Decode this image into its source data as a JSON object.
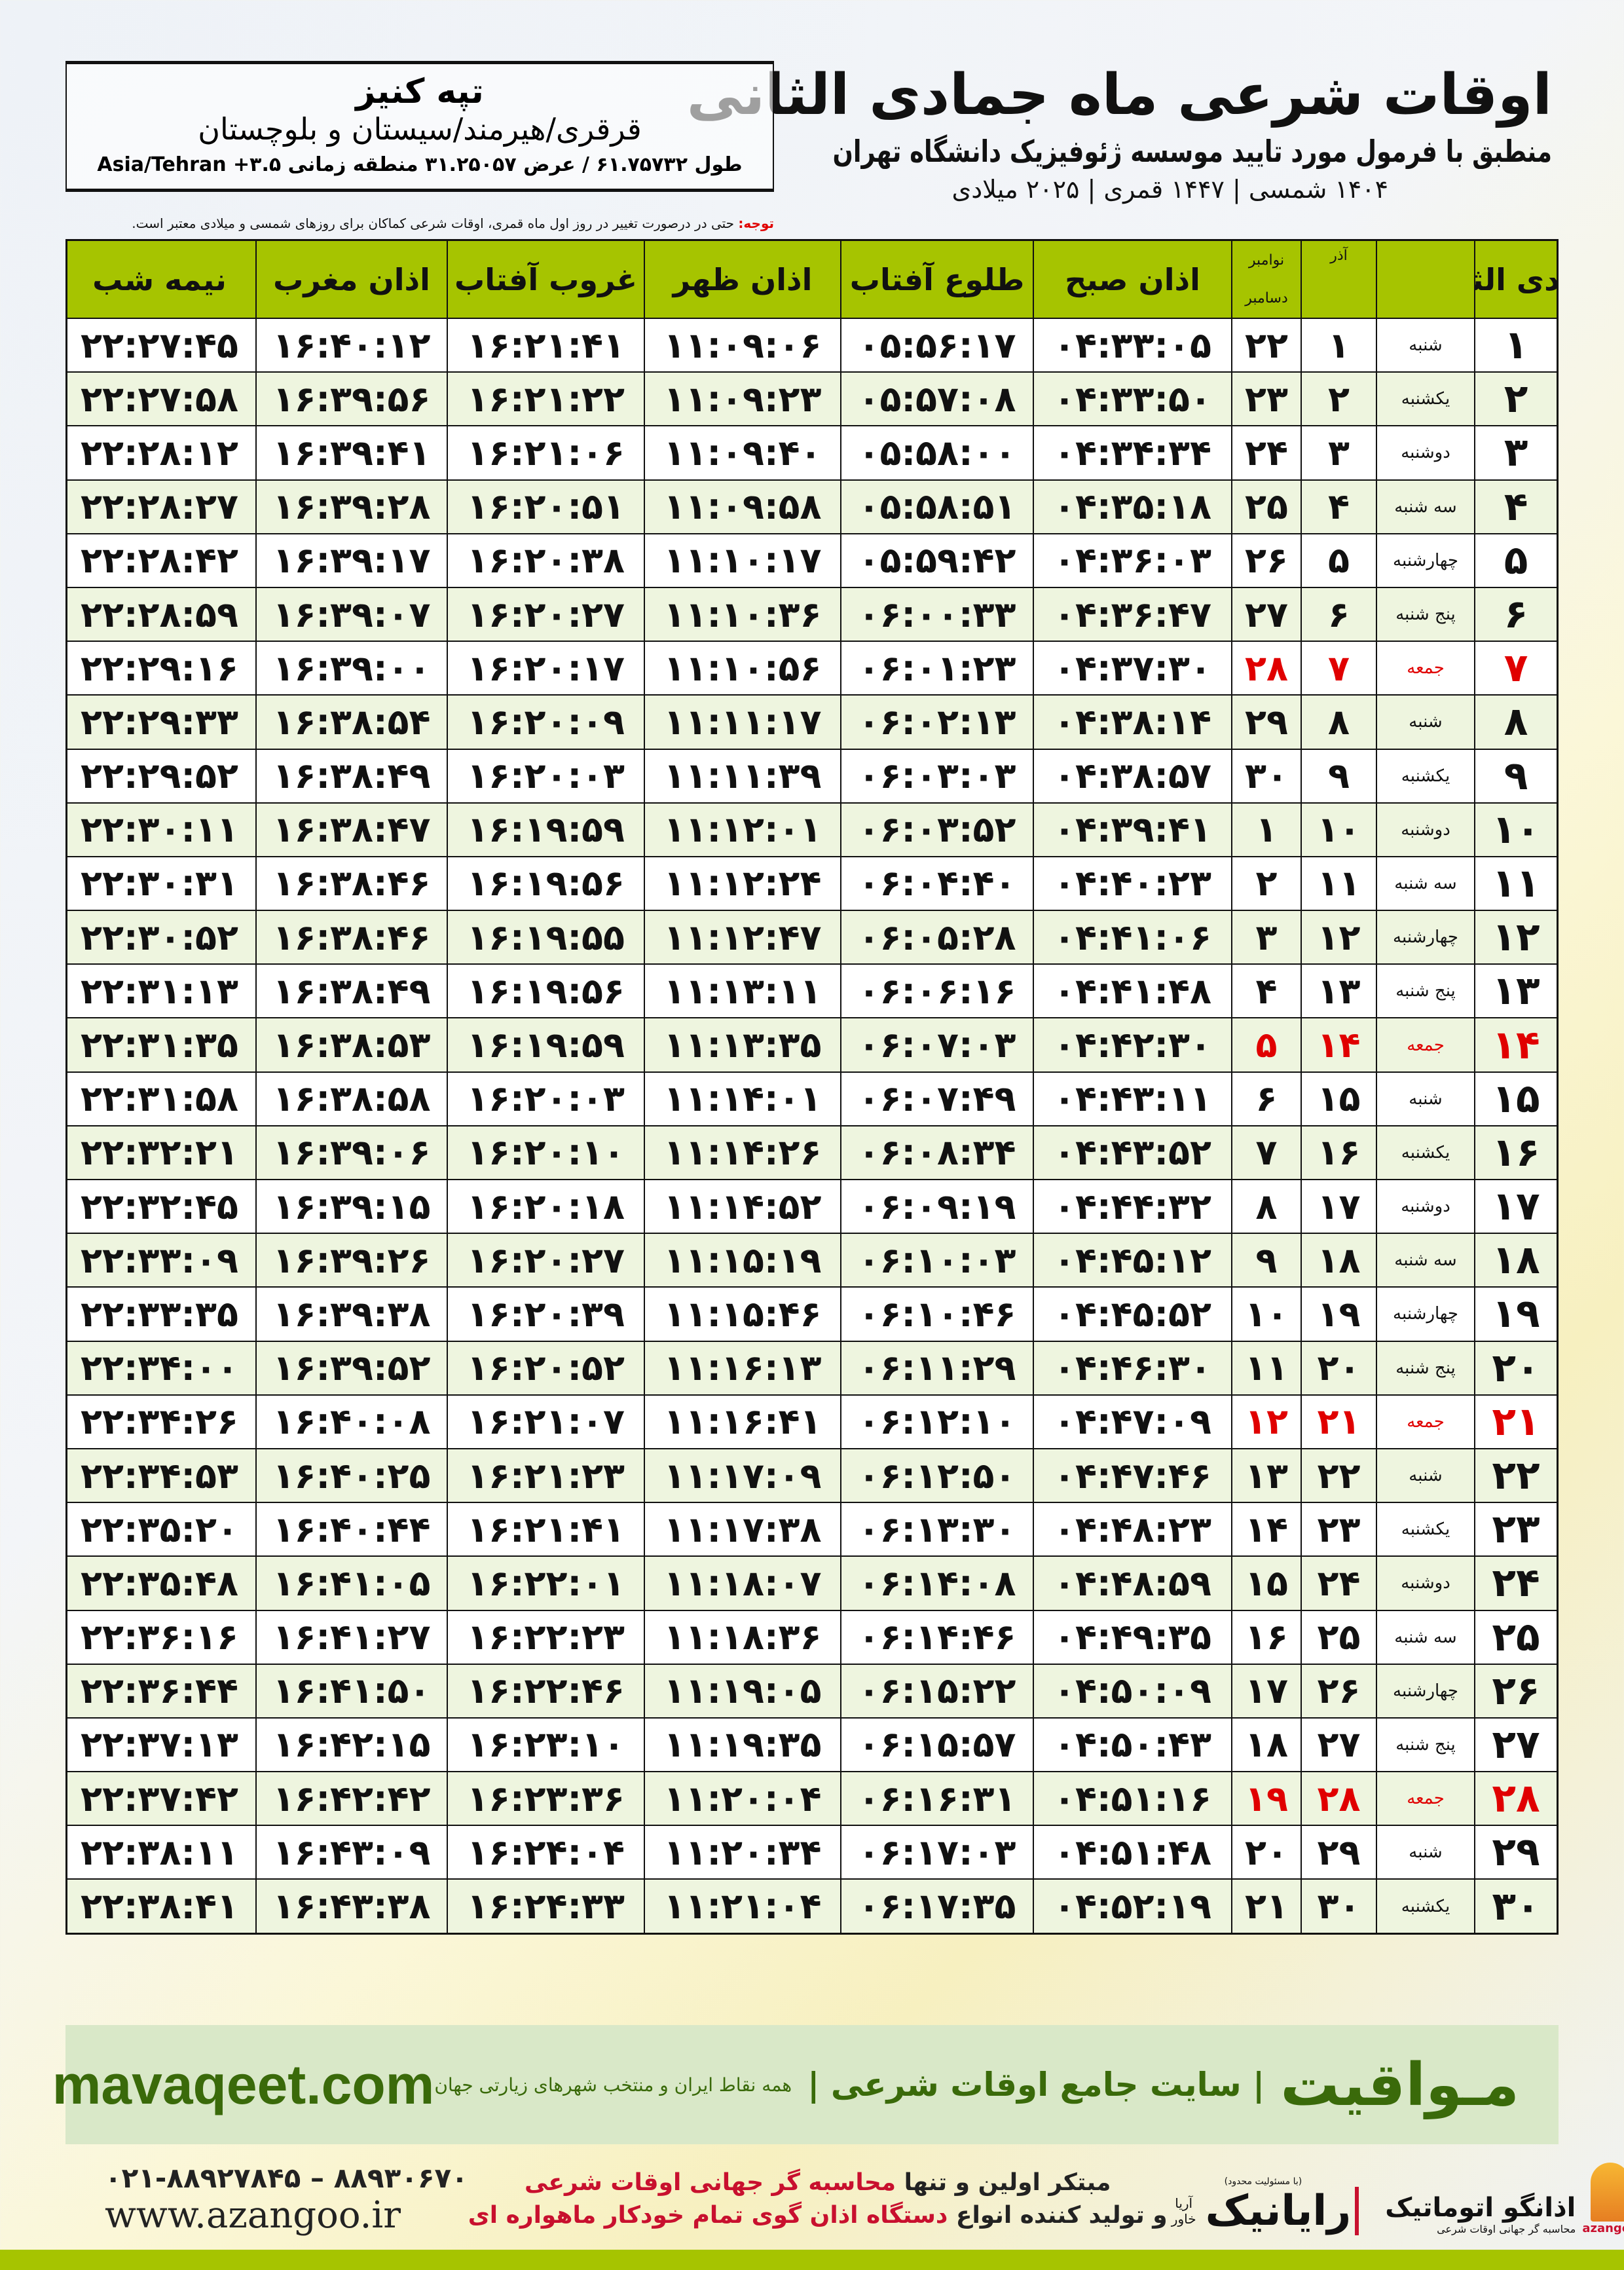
{
  "header": {
    "title": "اوقات شرعی ماه جمادی الثانی",
    "subtitle": "منطبق با فرمول مورد تایید موسسه ژئوفیزیک دانشگاه تهران",
    "dateline": "۱۴۰۴ شمسی | ۱۴۴۷ قمری | ۲۰۲۵ میلادی"
  },
  "location": {
    "city": "تپه کنیز",
    "region": "قرقری/هیرمند/سیستان و بلوچستان",
    "coords": "طول ۶۱.۷۵۷۳۲ / عرض ۳۱.۲۵۰۵۷ منطقه زمانی ۳.۵+ Asia/Tehran"
  },
  "note": {
    "label": "توجه:",
    "text": " حتی در درصورت تغییر در روز اول ماه قمری، اوقات شرعی کماکان برای روزهای شمسی و میلادی معتبر است."
  },
  "table": {
    "headers": {
      "hijri": "جمادی الثانی",
      "azar": "آذر",
      "greg_top": "نوامبر",
      "greg_bottom": "دسامبر",
      "fajr": "اذان صبح",
      "sunrise": "طلوع آفتاب",
      "dhuhr": "اذان ظهر",
      "sunset": "غروب آفتاب",
      "maghrib": "اذان مغرب",
      "midnight": "نیمه شب"
    },
    "holiday_color": "#e00000",
    "header_color": "#a6c400",
    "rows": [
      [
        "۱",
        "شنبه",
        "۱",
        "۲۲",
        "۰۴:۳۳:۰۵",
        "۰۵:۵۶:۱۷",
        "۱۱:۰۹:۰۶",
        "۱۶:۲۱:۴۱",
        "۱۶:۴۰:۱۲",
        "۲۲:۲۷:۴۵",
        false
      ],
      [
        "۲",
        "یکشنبه",
        "۲",
        "۲۳",
        "۰۴:۳۳:۵۰",
        "۰۵:۵۷:۰۸",
        "۱۱:۰۹:۲۳",
        "۱۶:۲۱:۲۲",
        "۱۶:۳۹:۵۶",
        "۲۲:۲۷:۵۸",
        false
      ],
      [
        "۳",
        "دوشنبه",
        "۳",
        "۲۴",
        "۰۴:۳۴:۳۴",
        "۰۵:۵۸:۰۰",
        "۱۱:۰۹:۴۰",
        "۱۶:۲۱:۰۶",
        "۱۶:۳۹:۴۱",
        "۲۲:۲۸:۱۲",
        false
      ],
      [
        "۴",
        "سه شنبه",
        "۴",
        "۲۵",
        "۰۴:۳۵:۱۸",
        "۰۵:۵۸:۵۱",
        "۱۱:۰۹:۵۸",
        "۱۶:۲۰:۵۱",
        "۱۶:۳۹:۲۸",
        "۲۲:۲۸:۲۷",
        false
      ],
      [
        "۵",
        "چهارشنبه",
        "۵",
        "۲۶",
        "۰۴:۳۶:۰۳",
        "۰۵:۵۹:۴۲",
        "۱۱:۱۰:۱۷",
        "۱۶:۲۰:۳۸",
        "۱۶:۳۹:۱۷",
        "۲۲:۲۸:۴۲",
        false
      ],
      [
        "۶",
        "پنج شنبه",
        "۶",
        "۲۷",
        "۰۴:۳۶:۴۷",
        "۰۶:۰۰:۳۳",
        "۱۱:۱۰:۳۶",
        "۱۶:۲۰:۲۷",
        "۱۶:۳۹:۰۷",
        "۲۲:۲۸:۵۹",
        false
      ],
      [
        "۷",
        "جمعه",
        "۷",
        "۲۸",
        "۰۴:۳۷:۳۰",
        "۰۶:۰۱:۲۳",
        "۱۱:۱۰:۵۶",
        "۱۶:۲۰:۱۷",
        "۱۶:۳۹:۰۰",
        "۲۲:۲۹:۱۶",
        true
      ],
      [
        "۸",
        "شنبه",
        "۸",
        "۲۹",
        "۰۴:۳۸:۱۴",
        "۰۶:۰۲:۱۳",
        "۱۱:۱۱:۱۷",
        "۱۶:۲۰:۰۹",
        "۱۶:۳۸:۵۴",
        "۲۲:۲۹:۳۳",
        false
      ],
      [
        "۹",
        "یکشنبه",
        "۹",
        "۳۰",
        "۰۴:۳۸:۵۷",
        "۰۶:۰۳:۰۳",
        "۱۱:۱۱:۳۹",
        "۱۶:۲۰:۰۳",
        "۱۶:۳۸:۴۹",
        "۲۲:۲۹:۵۲",
        false
      ],
      [
        "۱۰",
        "دوشنبه",
        "۱۰",
        "۱",
        "۰۴:۳۹:۴۱",
        "۰۶:۰۳:۵۲",
        "۱۱:۱۲:۰۱",
        "۱۶:۱۹:۵۹",
        "۱۶:۳۸:۴۷",
        "۲۲:۳۰:۱۱",
        false
      ],
      [
        "۱۱",
        "سه شنبه",
        "۱۱",
        "۲",
        "۰۴:۴۰:۲۳",
        "۰۶:۰۴:۴۰",
        "۱۱:۱۲:۲۴",
        "۱۶:۱۹:۵۶",
        "۱۶:۳۸:۴۶",
        "۲۲:۳۰:۳۱",
        false
      ],
      [
        "۱۲",
        "چهارشنبه",
        "۱۲",
        "۳",
        "۰۴:۴۱:۰۶",
        "۰۶:۰۵:۲۸",
        "۱۱:۱۲:۴۷",
        "۱۶:۱۹:۵۵",
        "۱۶:۳۸:۴۶",
        "۲۲:۳۰:۵۲",
        false
      ],
      [
        "۱۳",
        "پنج شنبه",
        "۱۳",
        "۴",
        "۰۴:۴۱:۴۸",
        "۰۶:۰۶:۱۶",
        "۱۱:۱۳:۱۱",
        "۱۶:۱۹:۵۶",
        "۱۶:۳۸:۴۹",
        "۲۲:۳۱:۱۳",
        false
      ],
      [
        "۱۴",
        "جمعه",
        "۱۴",
        "۵",
        "۰۴:۴۲:۳۰",
        "۰۶:۰۷:۰۳",
        "۱۱:۱۳:۳۵",
        "۱۶:۱۹:۵۹",
        "۱۶:۳۸:۵۳",
        "۲۲:۳۱:۳۵",
        true
      ],
      [
        "۱۵",
        "شنبه",
        "۱۵",
        "۶",
        "۰۴:۴۳:۱۱",
        "۰۶:۰۷:۴۹",
        "۱۱:۱۴:۰۱",
        "۱۶:۲۰:۰۳",
        "۱۶:۳۸:۵۸",
        "۲۲:۳۱:۵۸",
        false
      ],
      [
        "۱۶",
        "یکشنبه",
        "۱۶",
        "۷",
        "۰۴:۴۳:۵۲",
        "۰۶:۰۸:۳۴",
        "۱۱:۱۴:۲۶",
        "۱۶:۲۰:۱۰",
        "۱۶:۳۹:۰۶",
        "۲۲:۳۲:۲۱",
        false
      ],
      [
        "۱۷",
        "دوشنبه",
        "۱۷",
        "۸",
        "۰۴:۴۴:۳۲",
        "۰۶:۰۹:۱۹",
        "۱۱:۱۴:۵۲",
        "۱۶:۲۰:۱۸",
        "۱۶:۳۹:۱۵",
        "۲۲:۳۲:۴۵",
        false
      ],
      [
        "۱۸",
        "سه شنبه",
        "۱۸",
        "۹",
        "۰۴:۴۵:۱۲",
        "۰۶:۱۰:۰۳",
        "۱۱:۱۵:۱۹",
        "۱۶:۲۰:۲۷",
        "۱۶:۳۹:۲۶",
        "۲۲:۳۳:۰۹",
        false
      ],
      [
        "۱۹",
        "چهارشنبه",
        "۱۹",
        "۱۰",
        "۰۴:۴۵:۵۲",
        "۰۶:۱۰:۴۶",
        "۱۱:۱۵:۴۶",
        "۱۶:۲۰:۳۹",
        "۱۶:۳۹:۳۸",
        "۲۲:۳۳:۳۵",
        false
      ],
      [
        "۲۰",
        "پنج شنبه",
        "۲۰",
        "۱۱",
        "۰۴:۴۶:۳۰",
        "۰۶:۱۱:۲۹",
        "۱۱:۱۶:۱۳",
        "۱۶:۲۰:۵۲",
        "۱۶:۳۹:۵۲",
        "۲۲:۳۴:۰۰",
        false
      ],
      [
        "۲۱",
        "جمعه",
        "۲۱",
        "۱۲",
        "۰۴:۴۷:۰۹",
        "۰۶:۱۲:۱۰",
        "۱۱:۱۶:۴۱",
        "۱۶:۲۱:۰۷",
        "۱۶:۴۰:۰۸",
        "۲۲:۳۴:۲۶",
        true
      ],
      [
        "۲۲",
        "شنبه",
        "۲۲",
        "۱۳",
        "۰۴:۴۷:۴۶",
        "۰۶:۱۲:۵۰",
        "۱۱:۱۷:۰۹",
        "۱۶:۲۱:۲۳",
        "۱۶:۴۰:۲۵",
        "۲۲:۳۴:۵۳",
        false
      ],
      [
        "۲۳",
        "یکشنبه",
        "۲۳",
        "۱۴",
        "۰۴:۴۸:۲۳",
        "۰۶:۱۳:۳۰",
        "۱۱:۱۷:۳۸",
        "۱۶:۲۱:۴۱",
        "۱۶:۴۰:۴۴",
        "۲۲:۳۵:۲۰",
        false
      ],
      [
        "۲۴",
        "دوشنبه",
        "۲۴",
        "۱۵",
        "۰۴:۴۸:۵۹",
        "۰۶:۱۴:۰۸",
        "۱۱:۱۸:۰۷",
        "۱۶:۲۲:۰۱",
        "۱۶:۴۱:۰۵",
        "۲۲:۳۵:۴۸",
        false
      ],
      [
        "۲۵",
        "سه شنبه",
        "۲۵",
        "۱۶",
        "۰۴:۴۹:۳۵",
        "۰۶:۱۴:۴۶",
        "۱۱:۱۸:۳۶",
        "۱۶:۲۲:۲۳",
        "۱۶:۴۱:۲۷",
        "۲۲:۳۶:۱۶",
        false
      ],
      [
        "۲۶",
        "چهارشنبه",
        "۲۶",
        "۱۷",
        "۰۴:۵۰:۰۹",
        "۰۶:۱۵:۲۲",
        "۱۱:۱۹:۰۵",
        "۱۶:۲۲:۴۶",
        "۱۶:۴۱:۵۰",
        "۲۲:۳۶:۴۴",
        false
      ],
      [
        "۲۷",
        "پنج شنبه",
        "۲۷",
        "۱۸",
        "۰۴:۵۰:۴۳",
        "۰۶:۱۵:۵۷",
        "۱۱:۱۹:۳۵",
        "۱۶:۲۳:۱۰",
        "۱۶:۴۲:۱۵",
        "۲۲:۳۷:۱۳",
        false
      ],
      [
        "۲۸",
        "جمعه",
        "۲۸",
        "۱۹",
        "۰۴:۵۱:۱۶",
        "۰۶:۱۶:۳۱",
        "۱۱:۲۰:۰۴",
        "۱۶:۲۳:۳۶",
        "۱۶:۴۲:۴۲",
        "۲۲:۳۷:۴۲",
        true
      ],
      [
        "۲۹",
        "شنبه",
        "۲۹",
        "۲۰",
        "۰۴:۵۱:۴۸",
        "۰۶:۱۷:۰۳",
        "۱۱:۲۰:۳۴",
        "۱۶:۲۴:۰۴",
        "۱۶:۴۳:۰۹",
        "۲۲:۳۸:۱۱",
        false
      ],
      [
        "۳۰",
        "یکشنبه",
        "۳۰",
        "۲۱",
        "۰۴:۵۲:۱۹",
        "۰۶:۱۷:۳۵",
        "۱۱:۲۱:۰۴",
        "۱۶:۲۴:۳۳",
        "۱۶:۴۳:۳۸",
        "۲۲:۳۸:۴۱",
        false
      ]
    ]
  },
  "promo": {
    "site": "mavaqeet.com",
    "brand": "مـواقیت",
    "slogan": "| سایت جامع اوقات شرعی |",
    "slogan2": "همه نقاط ایران و منتخب شهرهای زیارتی جهان"
  },
  "footer": {
    "phone": "۰۲۱-۸۸۹۲۷۸۴۵ – ۸۸۹۳۰۶۷۰",
    "web": "www.azangoo.ir",
    "ad_line1_a": "مبتکر اولین و تنها ",
    "ad_line1_b": "محاسبه گر جهانی اوقات شرعی",
    "ad_line2_a": "و تولید کننده انواع ",
    "ad_line2_b": "دستگاه اذان گوی تمام خودکار ماهواره ای",
    "logo1_small": "(با مسئولیت محدود)",
    "logo1_name": "رایانیک",
    "logo1_sub": "آریا خاور",
    "logo2_name": "اذانگو اتوماتیک",
    "logo2_sub": "محاسبه گر جهانی اوقات شرعی",
    "logo2_en": "azangoo"
  }
}
